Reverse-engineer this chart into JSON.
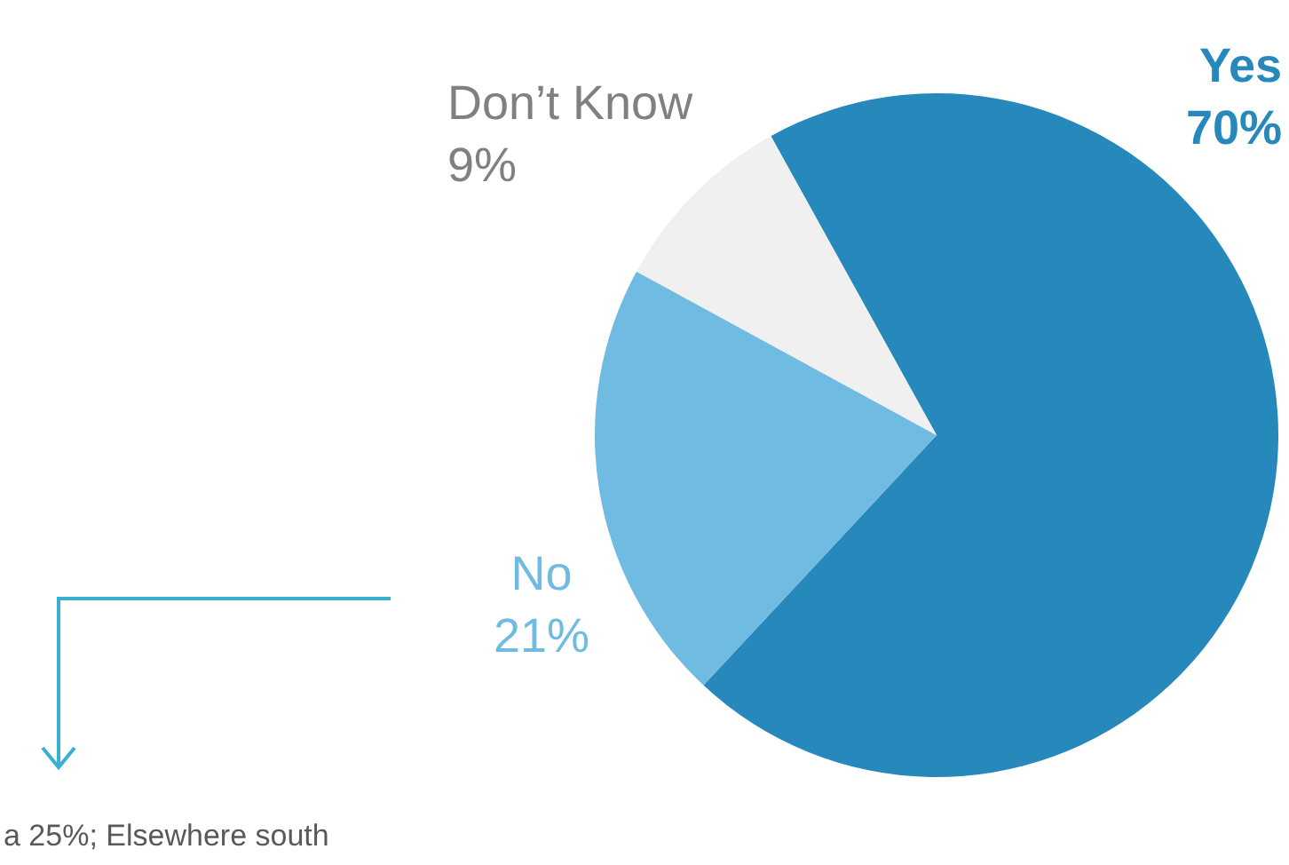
{
  "chart_data": {
    "type": "pie",
    "categories": [
      "Yes",
      "No",
      "Don’t Know"
    ],
    "values": [
      70,
      21,
      9
    ],
    "value_labels": [
      "70%",
      "21%",
      "9%"
    ],
    "colors": [
      "#2688bb",
      "#6fbbe2",
      "#f0f0f0"
    ],
    "annotations": [
      "a 25%; Elsewhere south"
    ],
    "legend": false
  }
}
